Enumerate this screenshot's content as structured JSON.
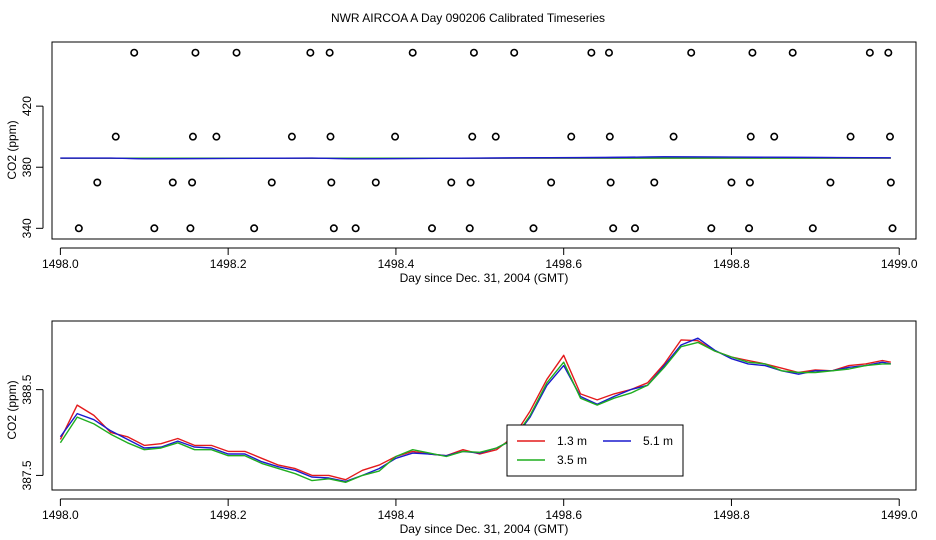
{
  "title": "NWR AIRCOA A  Day 090206  Calibrated Timeseries",
  "colors": {
    "red": "#e41a1c",
    "green": "#1fae1f",
    "blue": "#1a1acd",
    "black": "#000000"
  },
  "chart_data": [
    {
      "type": "scatter",
      "xlabel": "Day since Dec. 31, 2004 (GMT)",
      "ylabel": "CO2 (ppm)",
      "xlim": [
        1497.99,
        1499.02
      ],
      "ylim": [
        333,
        462
      ],
      "xticks": [
        1498.0,
        1498.2,
        1498.4,
        1498.6,
        1498.8,
        1499.0
      ],
      "xtick_labels": [
        "1498.0",
        "1498.2",
        "1498.4",
        "1498.6",
        "1498.8",
        "1499.0"
      ],
      "yticks": [
        340,
        380,
        420
      ],
      "ytick_labels": [
        "340",
        "380",
        "420"
      ],
      "points": [
        {
          "x": 1498.088,
          "y": 455
        },
        {
          "x": 1498.161,
          "y": 455
        },
        {
          "x": 1498.21,
          "y": 455
        },
        {
          "x": 1498.298,
          "y": 455
        },
        {
          "x": 1498.321,
          "y": 455
        },
        {
          "x": 1498.42,
          "y": 455
        },
        {
          "x": 1498.493,
          "y": 455
        },
        {
          "x": 1498.541,
          "y": 455
        },
        {
          "x": 1498.633,
          "y": 455
        },
        {
          "x": 1498.654,
          "y": 455
        },
        {
          "x": 1498.752,
          "y": 455
        },
        {
          "x": 1498.825,
          "y": 455
        },
        {
          "x": 1498.873,
          "y": 455
        },
        {
          "x": 1498.965,
          "y": 455
        },
        {
          "x": 1498.987,
          "y": 455
        },
        {
          "x": 1498.066,
          "y": 400
        },
        {
          "x": 1498.158,
          "y": 400
        },
        {
          "x": 1498.186,
          "y": 400
        },
        {
          "x": 1498.276,
          "y": 400
        },
        {
          "x": 1498.322,
          "y": 400
        },
        {
          "x": 1498.399,
          "y": 400
        },
        {
          "x": 1498.491,
          "y": 400
        },
        {
          "x": 1498.519,
          "y": 400
        },
        {
          "x": 1498.609,
          "y": 400
        },
        {
          "x": 1498.655,
          "y": 400
        },
        {
          "x": 1498.731,
          "y": 400
        },
        {
          "x": 1498.823,
          "y": 400
        },
        {
          "x": 1498.851,
          "y": 400
        },
        {
          "x": 1498.942,
          "y": 400
        },
        {
          "x": 1498.989,
          "y": 400
        },
        {
          "x": 1498.044,
          "y": 370
        },
        {
          "x": 1498.134,
          "y": 370
        },
        {
          "x": 1498.157,
          "y": 370
        },
        {
          "x": 1498.252,
          "y": 370
        },
        {
          "x": 1498.323,
          "y": 370
        },
        {
          "x": 1498.376,
          "y": 370
        },
        {
          "x": 1498.466,
          "y": 370
        },
        {
          "x": 1498.489,
          "y": 370
        },
        {
          "x": 1498.585,
          "y": 370
        },
        {
          "x": 1498.656,
          "y": 370
        },
        {
          "x": 1498.708,
          "y": 370
        },
        {
          "x": 1498.8,
          "y": 370
        },
        {
          "x": 1498.822,
          "y": 370
        },
        {
          "x": 1498.918,
          "y": 370
        },
        {
          "x": 1498.99,
          "y": 370
        },
        {
          "x": 1498.022,
          "y": 340
        },
        {
          "x": 1498.112,
          "y": 340
        },
        {
          "x": 1498.155,
          "y": 340
        },
        {
          "x": 1498.231,
          "y": 340
        },
        {
          "x": 1498.326,
          "y": 340
        },
        {
          "x": 1498.352,
          "y": 340
        },
        {
          "x": 1498.443,
          "y": 340
        },
        {
          "x": 1498.488,
          "y": 340
        },
        {
          "x": 1498.564,
          "y": 340
        },
        {
          "x": 1498.659,
          "y": 340
        },
        {
          "x": 1498.685,
          "y": 340
        },
        {
          "x": 1498.776,
          "y": 340
        },
        {
          "x": 1498.821,
          "y": 340
        },
        {
          "x": 1498.897,
          "y": 340
        },
        {
          "x": 1498.992,
          "y": 340
        }
      ],
      "flat_series": [
        {
          "color": "blue",
          "x": [
            1498.0,
            1498.06,
            1498.1,
            1498.2,
            1498.3,
            1498.35,
            1498.5,
            1498.55,
            1498.65,
            1498.72,
            1498.8,
            1498.99
          ],
          "y": [
            386,
            386,
            385.5,
            385.8,
            386,
            385.5,
            386,
            386.2,
            386.4,
            386.8,
            386.6,
            386.2
          ]
        },
        {
          "color": "red",
          "x": [
            1498.0,
            1498.99
          ],
          "y": [
            386,
            386
          ]
        },
        {
          "color": "green",
          "x": [
            1498.0,
            1498.99
          ],
          "y": [
            386,
            386
          ]
        }
      ]
    },
    {
      "type": "line",
      "xlabel": "Day since Dec. 31, 2004 (GMT)",
      "ylabel": "CO2 (ppm)",
      "xlim": [
        1497.99,
        1499.02
      ],
      "ylim": [
        387.33,
        389.3
      ],
      "xticks": [
        1498.0,
        1498.2,
        1498.4,
        1498.6,
        1498.8,
        1499.0
      ],
      "xtick_labels": [
        "1498.0",
        "1498.2",
        "1498.4",
        "1498.6",
        "1498.8",
        "1499.0"
      ],
      "yticks": [
        387.5,
        388.5
      ],
      "ytick_labels": [
        "387.5",
        "388.5"
      ],
      "legend": {
        "position": "center-right",
        "entries": [
          {
            "label": "1.3 m",
            "color": "red"
          },
          {
            "label": "5.1 m",
            "color": "blue"
          },
          {
            "label": "3.5 m",
            "color": "green"
          }
        ]
      },
      "series": [
        {
          "name": "1.3 m",
          "color": "red",
          "x": [
            1498.0,
            1498.02,
            1498.04,
            1498.06,
            1498.08,
            1498.1,
            1498.12,
            1498.14,
            1498.16,
            1498.18,
            1498.2,
            1498.22,
            1498.24,
            1498.26,
            1498.28,
            1498.3,
            1498.32,
            1498.34,
            1498.36,
            1498.38,
            1498.4,
            1498.42,
            1498.44,
            1498.46,
            1498.48,
            1498.5,
            1498.52,
            1498.54,
            1498.56,
            1498.58,
            1498.6,
            1498.62,
            1498.64,
            1498.66,
            1498.68,
            1498.7,
            1498.72,
            1498.74,
            1498.76,
            1498.78,
            1498.8,
            1498.82,
            1498.84,
            1498.86,
            1498.88,
            1498.9,
            1498.92,
            1498.94,
            1498.96,
            1498.98,
            1498.99
          ],
          "y": [
            387.92,
            388.32,
            388.2,
            388.0,
            387.95,
            387.85,
            387.87,
            387.93,
            387.85,
            387.85,
            387.78,
            387.78,
            387.7,
            387.62,
            387.58,
            387.5,
            387.5,
            387.45,
            387.56,
            387.62,
            387.72,
            387.78,
            387.75,
            387.73,
            387.8,
            387.75,
            387.8,
            387.95,
            388.25,
            388.62,
            388.9,
            388.45,
            388.38,
            388.45,
            388.5,
            388.58,
            388.8,
            389.08,
            389.07,
            388.95,
            388.88,
            388.84,
            388.8,
            388.75,
            388.7,
            388.73,
            388.72,
            388.78,
            388.8,
            388.84,
            388.82
          ]
        },
        {
          "name": "5.1 m",
          "color": "blue",
          "x": [
            1498.0,
            1498.02,
            1498.04,
            1498.06,
            1498.08,
            1498.1,
            1498.12,
            1498.14,
            1498.16,
            1498.18,
            1498.2,
            1498.22,
            1498.24,
            1498.26,
            1498.28,
            1498.3,
            1498.32,
            1498.34,
            1498.36,
            1498.38,
            1498.4,
            1498.42,
            1498.44,
            1498.46,
            1498.48,
            1498.5,
            1498.52,
            1498.54,
            1498.56,
            1498.58,
            1498.6,
            1498.62,
            1498.64,
            1498.66,
            1498.68,
            1498.7,
            1498.72,
            1498.74,
            1498.76,
            1498.78,
            1498.8,
            1498.82,
            1498.84,
            1498.86,
            1498.88,
            1498.9,
            1498.92,
            1498.94,
            1498.96,
            1498.98,
            1498.99
          ],
          "y": [
            387.95,
            388.22,
            388.15,
            388.02,
            387.92,
            387.82,
            387.83,
            387.9,
            387.83,
            387.82,
            387.75,
            387.75,
            387.66,
            387.6,
            387.56,
            387.48,
            387.47,
            387.43,
            387.5,
            387.58,
            387.7,
            387.76,
            387.75,
            387.73,
            387.78,
            387.76,
            387.82,
            387.92,
            388.18,
            388.55,
            388.78,
            388.42,
            388.33,
            388.42,
            388.5,
            388.55,
            388.78,
            389.02,
            389.1,
            388.96,
            388.86,
            388.8,
            388.78,
            388.72,
            388.68,
            388.72,
            388.72,
            388.76,
            388.78,
            388.82,
            388.8
          ]
        },
        {
          "name": "3.5 m",
          "color": "green",
          "x": [
            1498.0,
            1498.02,
            1498.04,
            1498.06,
            1498.08,
            1498.1,
            1498.12,
            1498.14,
            1498.16,
            1498.18,
            1498.2,
            1498.22,
            1498.24,
            1498.26,
            1498.28,
            1498.3,
            1498.32,
            1498.34,
            1498.36,
            1498.38,
            1498.4,
            1498.42,
            1498.44,
            1498.46,
            1498.48,
            1498.5,
            1498.52,
            1498.54,
            1498.56,
            1498.58,
            1498.6,
            1498.62,
            1498.64,
            1498.66,
            1498.68,
            1498.7,
            1498.72,
            1498.74,
            1498.76,
            1498.78,
            1498.8,
            1498.82,
            1498.84,
            1498.86,
            1498.88,
            1498.9,
            1498.92,
            1498.94,
            1498.96,
            1498.98,
            1498.99
          ],
          "y": [
            387.88,
            388.18,
            388.1,
            387.98,
            387.88,
            387.8,
            387.82,
            387.88,
            387.8,
            387.8,
            387.73,
            387.73,
            387.64,
            387.58,
            387.52,
            387.44,
            387.46,
            387.42,
            387.5,
            387.55,
            387.72,
            387.8,
            387.76,
            387.72,
            387.78,
            387.77,
            387.82,
            387.92,
            388.2,
            388.58,
            388.82,
            388.4,
            388.32,
            388.4,
            388.46,
            388.55,
            388.76,
            389.0,
            389.05,
            388.95,
            388.88,
            388.82,
            388.8,
            388.72,
            388.7,
            388.7,
            388.72,
            388.74,
            388.78,
            388.8,
            388.8
          ]
        }
      ]
    }
  ]
}
